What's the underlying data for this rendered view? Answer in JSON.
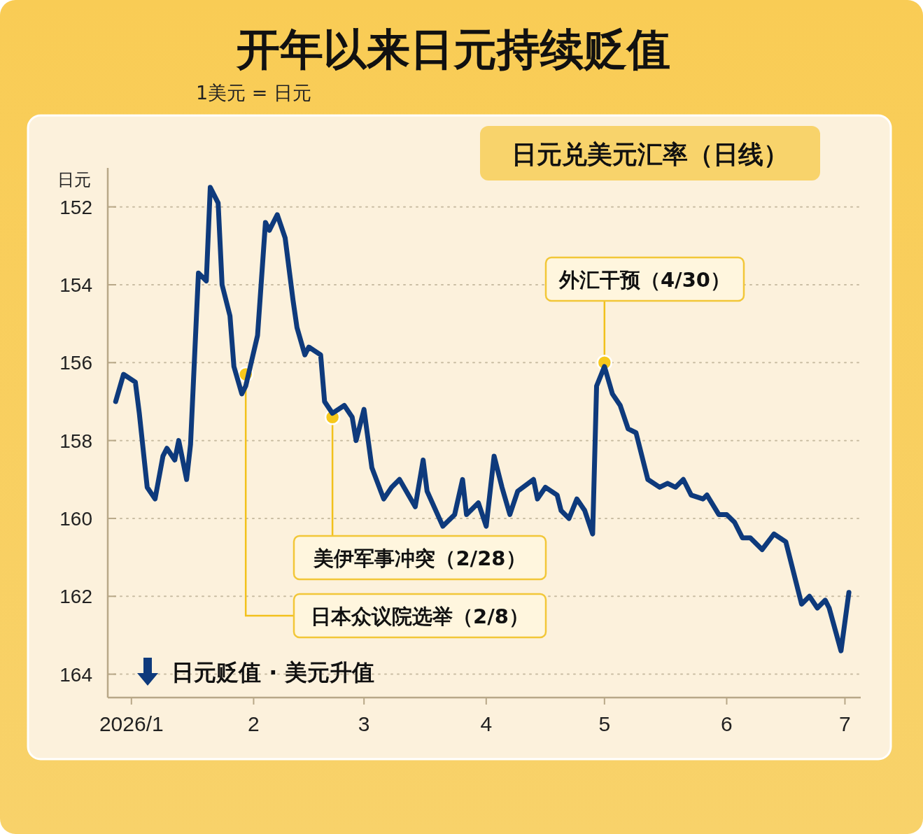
{
  "chart_data": {
    "type": "line",
    "title": "开年以来日元持续贬值",
    "subtitle": "1美元 = 日元",
    "ylabel": "日元",
    "x": [
      "2025-12-28",
      "2025-12-30",
      "2026-01-02",
      "2026-01-03",
      "2026-01-05",
      "2026-01-07",
      "2026-01-09",
      "2026-01-10",
      "2026-01-12",
      "2026-01-13",
      "2026-01-15",
      "2026-01-16",
      "2026-01-18",
      "2026-01-20",
      "2026-01-21",
      "2026-01-23",
      "2026-01-24",
      "2026-01-26",
      "2026-01-27",
      "2026-01-29",
      "2026-01-30",
      "2026-02-02",
      "2026-02-04",
      "2026-02-05",
      "2026-02-07",
      "2026-02-09",
      "2026-02-11",
      "2026-02-12",
      "2026-02-14",
      "2026-02-15",
      "2026-02-18",
      "2026-02-19",
      "2026-02-21",
      "2026-02-24",
      "2026-02-26",
      "2026-02-27",
      "2026-03-01",
      "2026-03-03",
      "2026-03-06",
      "2026-03-08",
      "2026-03-10",
      "2026-03-14",
      "2026-03-16",
      "2026-03-17",
      "2026-03-21",
      "2026-03-24",
      "2026-03-26",
      "2026-03-27",
      "2026-03-30",
      "2026-04-01",
      "2026-04-03",
      "2026-04-05",
      "2026-04-07",
      "2026-04-09",
      "2026-04-13",
      "2026-04-14",
      "2026-04-16",
      "2026-04-19",
      "2026-04-20",
      "2026-04-22",
      "2026-04-24",
      "2026-04-26",
      "2026-04-28",
      "2026-04-29",
      "2026-05-01",
      "2026-05-03",
      "2026-05-05",
      "2026-05-07",
      "2026-05-09",
      "2026-05-12",
      "2026-05-15",
      "2026-05-17",
      "2026-05-19",
      "2026-05-21",
      "2026-05-23",
      "2026-05-26",
      "2026-05-27",
      "2026-05-30",
      "2026-06-01",
      "2026-06-03",
      "2026-06-05",
      "2026-06-07",
      "2026-06-10",
      "2026-06-13",
      "2026-06-16",
      "2026-06-17",
      "2026-06-20",
      "2026-06-22",
      "2026-06-24",
      "2026-06-26",
      "2026-06-27",
      "2026-06-30",
      "2026-07-02"
    ],
    "series": [
      {
        "color": "#0e3a7c",
        "values": [
          157.0,
          156.3,
          156.5,
          157.3,
          159.2,
          159.5,
          158.4,
          158.2,
          158.5,
          158.0,
          159.0,
          158.1,
          153.7,
          153.9,
          151.5,
          151.9,
          154.0,
          154.8,
          156.1,
          156.8,
          156.6,
          155.3,
          152.4,
          152.6,
          152.2,
          152.8,
          154.4,
          155.1,
          155.8,
          155.6,
          155.8,
          157.0,
          157.3,
          157.1,
          157.4,
          158.0,
          157.2,
          158.7,
          159.5,
          159.2,
          159.0,
          159.7,
          158.5,
          159.3,
          160.2,
          159.9,
          159.0,
          159.9,
          159.6,
          160.2,
          158.4,
          159.2,
          159.9,
          159.3,
          159.0,
          159.5,
          159.2,
          159.4,
          159.8,
          160.0,
          159.5,
          159.8,
          160.4,
          156.6,
          156.1,
          156.8,
          157.1,
          157.7,
          157.8,
          159.0,
          159.2,
          159.1,
          159.2,
          159.0,
          159.4,
          159.5,
          159.4,
          159.9,
          159.9,
          160.1,
          160.5,
          160.5,
          160.8,
          160.4,
          160.6,
          161.0,
          162.2,
          162.0,
          162.3,
          162.1,
          162.3,
          163.4,
          161.9
        ]
      }
    ],
    "xlim": [
      "2025-12-26",
      "2026-07-05"
    ],
    "xticks": [
      {
        "value": "2026-01-01",
        "label": "2026/1"
      },
      {
        "value": "2026-02-01",
        "label": "2"
      },
      {
        "value": "2026-03-01",
        "label": "3"
      },
      {
        "value": "2026-04-01",
        "label": "4"
      },
      {
        "value": "2026-05-01",
        "label": "5"
      },
      {
        "value": "2026-06-01",
        "label": "6"
      },
      {
        "value": "2026-07-01",
        "label": "7"
      }
    ],
    "ylim": [
      164.6,
      151
    ],
    "yticks": [
      152,
      154,
      156,
      158,
      160,
      162,
      164
    ],
    "grid": "y",
    "marker": "none",
    "line_style": "solid",
    "annotations": [
      "日元兑美元汇率（日线）",
      {
        "text": "外汇干预（4/30）",
        "x": "2026-05-01",
        "y": 156.0
      },
      {
        "text": "美伊军事冲突（2/28）",
        "x": "2026-02-21",
        "y": 157.4
      },
      {
        "text": "日本众议院选举（2/8）",
        "x": "2026-01-30",
        "y": 156.3
      },
      "日元贬值 · 美元升值"
    ]
  }
}
